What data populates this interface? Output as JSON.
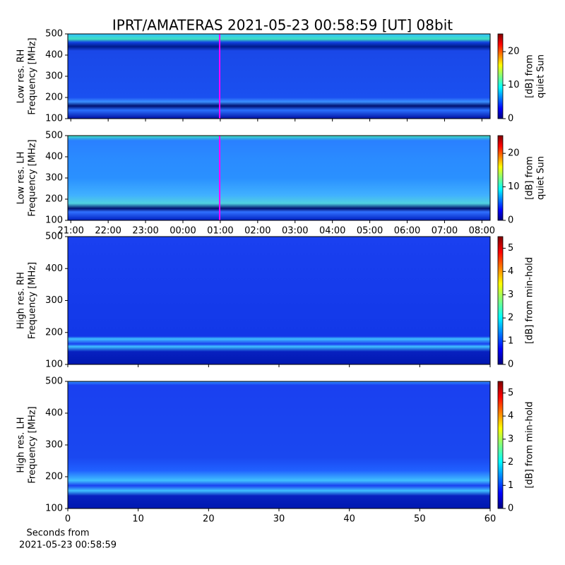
{
  "title": "IPRT/AMATERAS 2021-05-23 00:58:59 [UT]   08bit",
  "chart_data": [
    {
      "type": "heatmap",
      "ylabel": [
        "Low res. RH",
        "Frequency [MHz]"
      ],
      "ylim": [
        100,
        500
      ],
      "yticks": [
        100,
        200,
        300,
        400,
        500
      ],
      "xlim": [
        20.92,
        32.22
      ],
      "xticks": [
        21,
        22,
        23,
        24,
        25,
        26,
        27,
        28,
        29,
        30,
        31,
        32
      ],
      "xtick_labels": false,
      "marker_x": 24.983,
      "marker_color": "#ff00ff",
      "colorbar": {
        "label": [
          "[dB] from",
          "quiet Sun"
        ],
        "lim": [
          0,
          25.3
        ],
        "ticks": [
          0,
          10,
          20
        ],
        "colormap": "jet"
      }
    },
    {
      "type": "heatmap",
      "ylabel": [
        "Low res. LH",
        "Frequency [MHz]"
      ],
      "ylim": [
        100,
        500
      ],
      "yticks": [
        100,
        200,
        300,
        400,
        500
      ],
      "xlim": [
        20.92,
        32.22
      ],
      "xticks": [
        {
          "value": 21,
          "label": "21:00"
        },
        {
          "value": 22,
          "label": "22:00"
        },
        {
          "value": 23,
          "label": "23:00"
        },
        {
          "value": 24,
          "label": "00:00"
        },
        {
          "value": 25,
          "label": "01:00"
        },
        {
          "value": 26,
          "label": "02:00"
        },
        {
          "value": 27,
          "label": "03:00"
        },
        {
          "value": 28,
          "label": "04:00"
        },
        {
          "value": 29,
          "label": "05:00"
        },
        {
          "value": 30,
          "label": "06:00"
        },
        {
          "value": 31,
          "label": "07:00"
        },
        {
          "value": 32,
          "label": "08:00"
        }
      ],
      "xtick_labels": true,
      "marker_x": 24.983,
      "marker_color": "#ff00ff",
      "colorbar": {
        "label": [
          "[dB] from",
          "quiet Sun"
        ],
        "lim": [
          0,
          25.3
        ],
        "ticks": [
          0,
          10,
          20
        ],
        "colormap": "jet"
      }
    },
    {
      "type": "heatmap",
      "ylabel": [
        "High res. RH",
        "Frequency [MHz]"
      ],
      "ylim": [
        100,
        500
      ],
      "yticks": [
        100,
        200,
        300,
        400,
        500
      ],
      "xlim": [
        0,
        60
      ],
      "xticks": [
        0,
        10,
        20,
        30,
        40,
        50,
        60
      ],
      "xtick_labels": false,
      "colorbar": {
        "label": [
          "[dB] from min-hold"
        ],
        "lim": [
          0,
          5.5
        ],
        "ticks": [
          0,
          1,
          2,
          3,
          4,
          5
        ],
        "colormap": "jet"
      }
    },
    {
      "type": "heatmap",
      "ylabel": [
        "High res. LH",
        "Frequency [MHz]"
      ],
      "ylim": [
        100,
        500
      ],
      "yticks": [
        100,
        200,
        300,
        400,
        500
      ],
      "xlim": [
        0,
        60
      ],
      "xticks": [
        0,
        10,
        20,
        30,
        40,
        50,
        60
      ],
      "xtick_labels": true,
      "xlabel": [
        "Seconds from",
        "2021-05-23 00:58:59"
      ],
      "colorbar": {
        "label": [
          "[dB] from min-hold"
        ],
        "lim": [
          0,
          5.5
        ],
        "ticks": [
          0,
          1,
          2,
          3,
          4,
          5
        ],
        "colormap": "jet"
      }
    }
  ]
}
